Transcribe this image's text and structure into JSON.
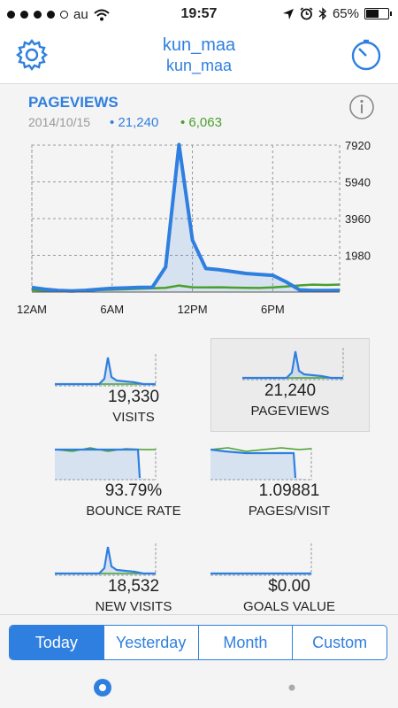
{
  "status": {
    "carrier": "au",
    "time": "19:57",
    "battery": "65%",
    "battery_level": 0.65
  },
  "header": {
    "title": "kun_maa",
    "subtitle": "kun_maa",
    "left_icon": "gear-icon",
    "right_icon": "timer-icon"
  },
  "main_chart": {
    "label": "PAGEVIEWS",
    "date": "2014/10/15",
    "value_primary": "• 21,240",
    "value_secondary": "• 6,063",
    "colors": {
      "primary": "#2f7fe0",
      "secondary": "#4aa02c"
    }
  },
  "chart_data": {
    "type": "line",
    "x_labels": [
      "12AM",
      "6AM",
      "12PM",
      "6PM"
    ],
    "y_ticks": [
      "7920",
      "5940",
      "3960",
      "1980"
    ],
    "ylim": [
      0,
      7920
    ],
    "grid": true,
    "series": [
      {
        "name": "21,240",
        "values": [
          250,
          150,
          80,
          60,
          90,
          150,
          200,
          220,
          250,
          260,
          1350,
          7950,
          2800,
          1270,
          1200,
          1100,
          1000,
          950,
          900,
          550,
          120,
          80,
          80,
          90
        ]
      },
      {
        "name": "6,063",
        "values": [
          100,
          70,
          60,
          60,
          80,
          110,
          130,
          150,
          180,
          200,
          230,
          350,
          260,
          250,
          260,
          240,
          230,
          220,
          250,
          300,
          360,
          400,
          380,
          400
        ]
      }
    ]
  },
  "metrics": [
    {
      "value": "19,330",
      "label": "VISITS"
    },
    {
      "value": "21,240",
      "label": "PAGEVIEWS"
    },
    {
      "value": "93.79%",
      "label": "BOUNCE RATE"
    },
    {
      "value": "1.09881",
      "label": "PAGES/VISIT"
    },
    {
      "value": "18,532",
      "label": "NEW VISITS"
    },
    {
      "value": "$0.00",
      "label": "GOALS VALUE"
    }
  ],
  "tabs": [
    "Today",
    "Yesterday",
    "Month",
    "Custom"
  ]
}
